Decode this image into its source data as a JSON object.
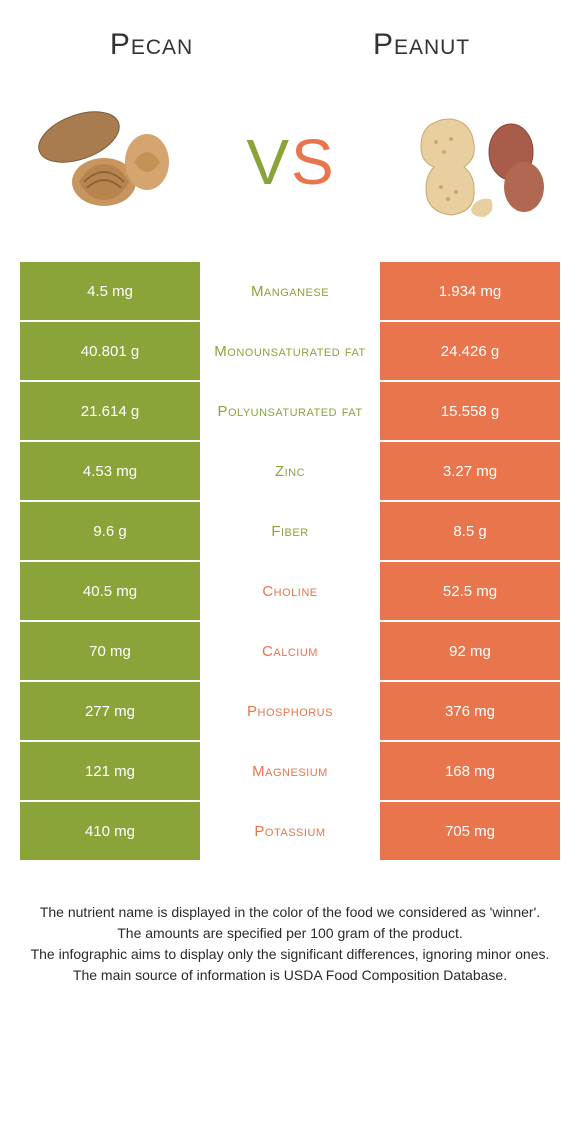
{
  "header": {
    "left_title": "Pecan",
    "right_title": "Peanut"
  },
  "vs": {
    "v": "V",
    "s": "S"
  },
  "colors": {
    "left": "#8aa43a",
    "right": "#e8754b",
    "text": "#333333",
    "bg": "#ffffff"
  },
  "table": {
    "rows": [
      {
        "left": "4.5 mg",
        "label": "Manganese",
        "right": "1.934 mg",
        "winner": "left"
      },
      {
        "left": "40.801 g",
        "label": "Monounsaturated fat",
        "right": "24.426 g",
        "winner": "left"
      },
      {
        "left": "21.614 g",
        "label": "Polyunsaturated fat",
        "right": "15.558 g",
        "winner": "left"
      },
      {
        "left": "4.53 mg",
        "label": "Zinc",
        "right": "3.27 mg",
        "winner": "left"
      },
      {
        "left": "9.6 g",
        "label": "Fiber",
        "right": "8.5 g",
        "winner": "left"
      },
      {
        "left": "40.5 mg",
        "label": "Choline",
        "right": "52.5 mg",
        "winner": "right"
      },
      {
        "left": "70 mg",
        "label": "Calcium",
        "right": "92 mg",
        "winner": "right"
      },
      {
        "left": "277 mg",
        "label": "Phosphorus",
        "right": "376 mg",
        "winner": "right"
      },
      {
        "left": "121 mg",
        "label": "Magnesium",
        "right": "168 mg",
        "winner": "right"
      },
      {
        "left": "410 mg",
        "label": "Potassium",
        "right": "705 mg",
        "winner": "right"
      }
    ]
  },
  "footer": {
    "line1": "The nutrient name is displayed in the color of the food we considered as 'winner'.",
    "line2": "The amounts are specified per 100 gram of the product.",
    "line3": "The infographic aims to display only the significant differences, ignoring minor ones.",
    "line4": "The main source of information is USDA Food Composition Database."
  }
}
